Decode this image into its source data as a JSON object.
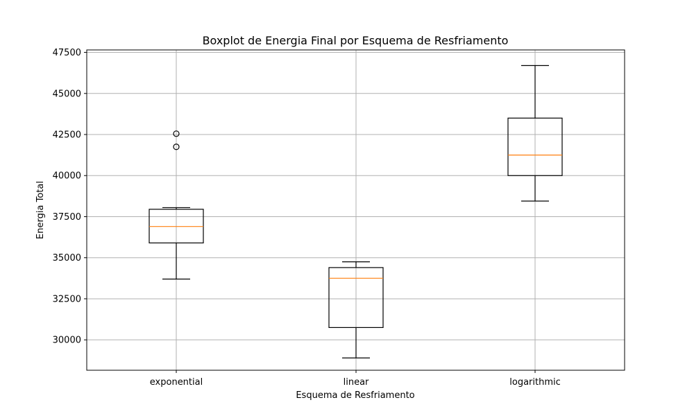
{
  "chart_data": {
    "type": "boxplot",
    "title": "Boxplot de Energia Final por Esquema de Resfriamento",
    "xlabel": "Esquema de Resfriamento",
    "ylabel": "Energia Total",
    "ylim": [
      28150,
      47650
    ],
    "yticks": [
      30000,
      32500,
      35000,
      37500,
      40000,
      42500,
      45000,
      47500
    ],
    "grid": true,
    "categories": [
      "exponential",
      "linear",
      "logarithmic"
    ],
    "series": [
      {
        "category": "exponential",
        "whisker_low": 33700,
        "q1": 35900,
        "median": 36900,
        "q3": 37950,
        "whisker_high": 38050,
        "outliers": [
          41750,
          42550
        ]
      },
      {
        "category": "linear",
        "whisker_low": 28900,
        "q1": 30750,
        "median": 33750,
        "q3": 34400,
        "whisker_high": 34750,
        "outliers": []
      },
      {
        "category": "logarithmic",
        "whisker_low": 38450,
        "q1": 40000,
        "median": 41250,
        "q3": 43500,
        "whisker_high": 46700,
        "outliers": []
      }
    ],
    "colors": {
      "box": "#000000",
      "median": "#ff7f0e",
      "grid": "#b0b0b0"
    }
  }
}
